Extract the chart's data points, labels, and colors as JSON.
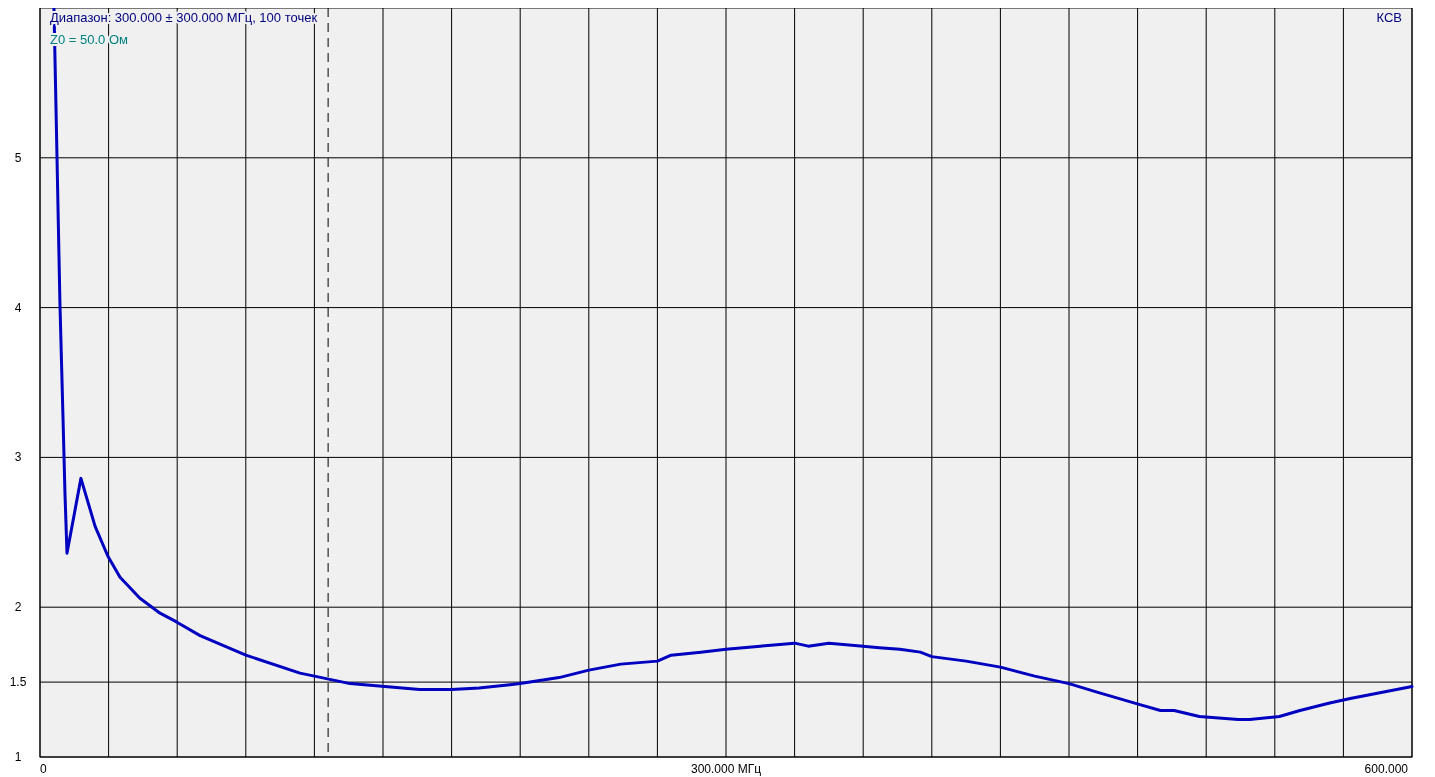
{
  "chart_data": {
    "type": "line",
    "ylabel": "КСВ",
    "annotations": [
      "Диапазон: 300.000 ± 300.000 МГц, 100 точек",
      "Z0 = 50.0 Ом"
    ],
    "xlim": [
      0,
      600
    ],
    "ylim": [
      1,
      6
    ],
    "xticks": [
      {
        "value": 0,
        "label": "0"
      },
      {
        "value": 30,
        "label": null
      },
      {
        "value": 60,
        "label": null
      },
      {
        "value": 90,
        "label": null
      },
      {
        "value": 120,
        "label": null
      },
      {
        "value": 150,
        "label": null
      },
      {
        "value": 180,
        "label": null
      },
      {
        "value": 210,
        "label": null
      },
      {
        "value": 240,
        "label": null
      },
      {
        "value": 270,
        "label": null
      },
      {
        "value": 300,
        "label": "300.000 МГц"
      },
      {
        "value": 330,
        "label": null
      },
      {
        "value": 360,
        "label": null
      },
      {
        "value": 390,
        "label": null
      },
      {
        "value": 420,
        "label": null
      },
      {
        "value": 450,
        "label": null
      },
      {
        "value": 480,
        "label": null
      },
      {
        "value": 510,
        "label": null
      },
      {
        "value": 540,
        "label": null
      },
      {
        "value": 570,
        "label": null
      },
      {
        "value": 600,
        "label": "600.000"
      }
    ],
    "yticks": [
      1,
      1.5,
      2,
      3,
      4,
      5
    ],
    "grid": true,
    "ref_lines": [
      {
        "axis": "x",
        "value": 126,
        "line_style": "dashed",
        "color": "#000000"
      }
    ],
    "series": [
      {
        "color": "#0000c0",
        "x": [
          6.1,
          7.4,
          8.7,
          10.1,
          10.9,
          11.8,
          17.9,
          24.1,
          29.7,
          35,
          43.7,
          52.5,
          59.9,
          70,
          90,
          113.7,
          120,
          135.6,
          166,
          180,
          192,
          210,
          227,
          240,
          254,
          270,
          276,
          289,
          300,
          315,
          330,
          336,
          345,
          360,
          367,
          376,
          385,
          390,
          405,
          420,
          435,
          450,
          463,
          481,
          490,
          496,
          507,
          524,
          529,
          542,
          551,
          564,
          573,
          600
        ],
        "values": [
          6,
          5.03,
          4.04,
          3.24,
          2.77,
          2.36,
          2.86,
          2.54,
          2.34,
          2.2,
          2.06,
          1.96,
          1.9,
          1.81,
          1.68,
          1.56,
          1.54,
          1.49,
          1.45,
          1.45,
          1.46,
          1.49,
          1.53,
          1.58,
          1.62,
          1.64,
          1.68,
          1.7,
          1.72,
          1.74,
          1.76,
          1.74,
          1.76,
          1.74,
          1.73,
          1.72,
          1.7,
          1.67,
          1.64,
          1.6,
          1.54,
          1.49,
          1.43,
          1.35,
          1.31,
          1.31,
          1.27,
          1.25,
          1.25,
          1.27,
          1.31,
          1.36,
          1.39,
          1.47
        ]
      }
    ]
  }
}
